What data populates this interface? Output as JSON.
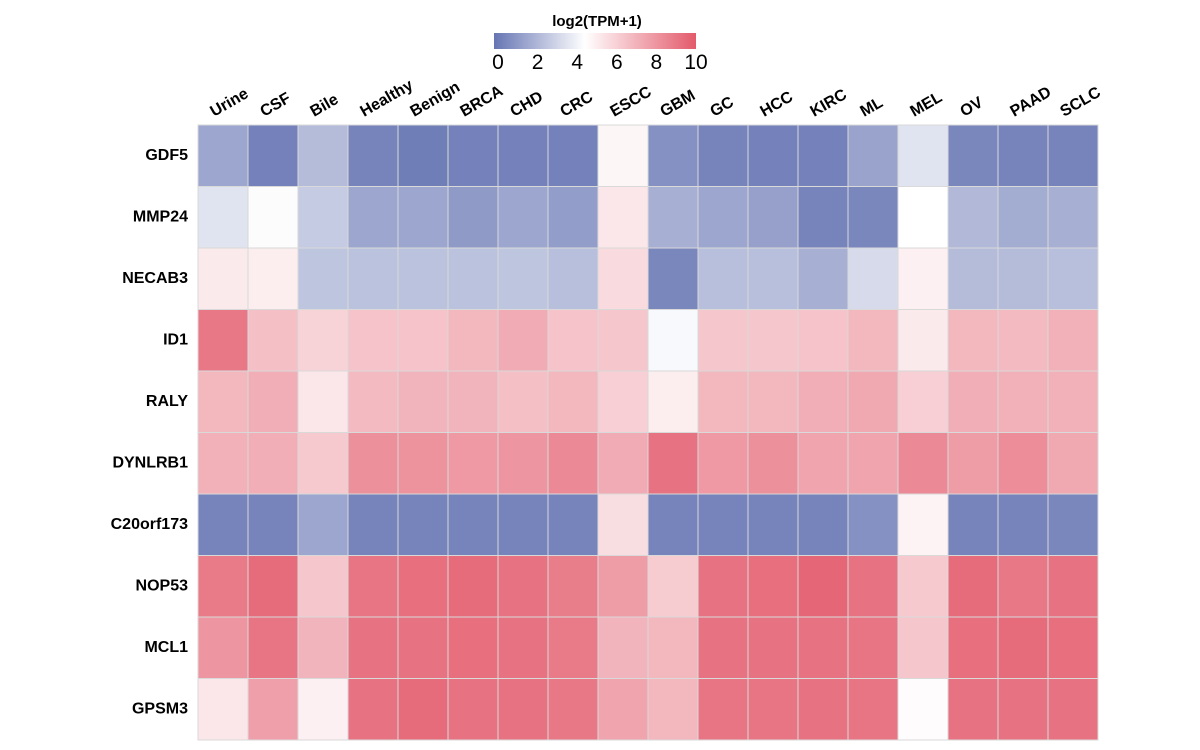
{
  "chart_data": {
    "type": "heatmap",
    "title": "",
    "colorbar": {
      "title": "log2(TPM+1)",
      "min": 0,
      "max": 10,
      "ticks": [
        "0",
        "2",
        "4",
        "6",
        "8",
        "10"
      ],
      "colors": {
        "low": "#6675b3",
        "mid": "#ffffff",
        "high": "#e35a6b"
      }
    },
    "columns": [
      "Urine",
      "CSF",
      "Bile",
      "Healthy",
      "Benign",
      "BRCA",
      "CHD",
      "CRC",
      "ESCC",
      "GBM",
      "GC",
      "HCC",
      "KIRC",
      "ML",
      "MEL",
      "OV",
      "PAAD",
      "SCLC"
    ],
    "rows": [
      "GDF5",
      "MMP24",
      "NECAB3",
      "ID1",
      "RALY",
      "DYNLRB1",
      "C20orf173",
      "NOP53",
      "MCL1",
      "GPSM3"
    ],
    "values": [
      [
        1.6,
        0.4,
        2.3,
        0.5,
        0.3,
        0.4,
        0.4,
        0.4,
        4.8,
        0.9,
        0.5,
        0.4,
        0.4,
        1.5,
        3.6,
        0.6,
        0.5,
        0.5
      ],
      [
        3.6,
        4.4,
        2.8,
        1.6,
        1.6,
        1.2,
        1.6,
        1.3,
        5.3,
        1.9,
        1.6,
        1.4,
        0.5,
        0.6,
        4.5,
        2.2,
        1.8,
        1.9
      ],
      [
        5.2,
        5.1,
        2.6,
        2.5,
        2.5,
        2.5,
        2.6,
        2.4,
        5.7,
        0.6,
        2.4,
        2.4,
        1.9,
        3.3,
        5.0,
        2.3,
        2.3,
        2.4
      ],
      [
        9.0,
        6.6,
        6.0,
        6.5,
        6.5,
        6.9,
        7.3,
        6.5,
        6.4,
        4.3,
        6.4,
        6.4,
        6.5,
        6.9,
        5.2,
        6.9,
        6.8,
        7.1
      ],
      [
        6.9,
        7.2,
        5.3,
        6.8,
        7.0,
        7.0,
        6.6,
        6.9,
        6.1,
        5.1,
        6.9,
        6.9,
        7.2,
        7.4,
        6.1,
        7.2,
        7.1,
        7.1
      ],
      [
        7.1,
        7.2,
        6.3,
        8.2,
        8.1,
        7.9,
        8.0,
        8.4,
        7.3,
        9.2,
        7.9,
        8.2,
        7.5,
        7.5,
        8.4,
        7.8,
        8.3,
        7.4
      ],
      [
        0.5,
        0.5,
        1.6,
        0.5,
        0.5,
        0.5,
        0.5,
        0.5,
        5.6,
        0.5,
        0.5,
        0.5,
        0.5,
        0.9,
        4.9,
        0.5,
        0.5,
        0.6
      ],
      [
        8.9,
        9.4,
        6.4,
        9.1,
        9.3,
        9.4,
        9.2,
        8.8,
        7.8,
        6.2,
        9.2,
        9.3,
        9.6,
        9.2,
        6.3,
        9.4,
        9.0,
        9.2
      ],
      [
        8.0,
        9.1,
        7.0,
        9.2,
        9.2,
        9.3,
        9.2,
        8.9,
        7.0,
        6.9,
        9.2,
        9.2,
        9.2,
        9.1,
        6.4,
        9.3,
        9.4,
        9.3
      ],
      [
        5.3,
        7.7,
        5.0,
        9.2,
        9.4,
        9.2,
        9.2,
        9.0,
        7.5,
        6.9,
        9.1,
        9.1,
        9.2,
        9.1,
        4.6,
        9.2,
        9.2,
        9.2
      ]
    ]
  }
}
